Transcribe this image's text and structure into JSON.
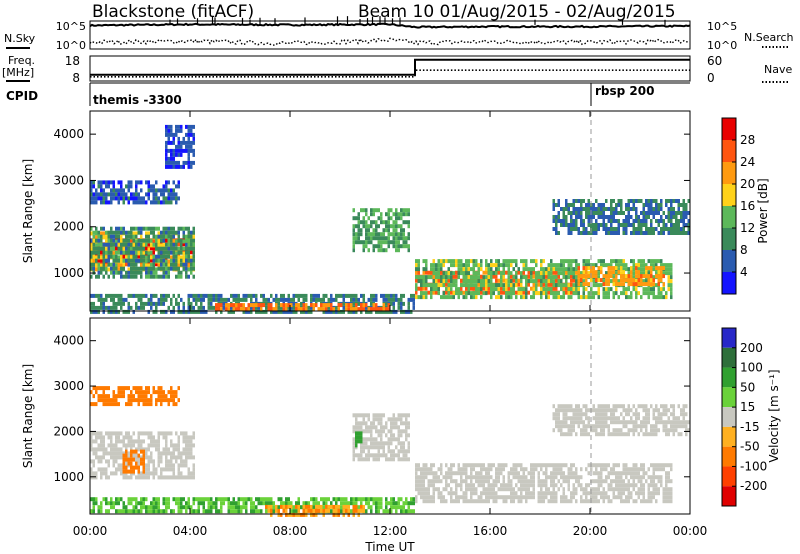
{
  "header": {
    "title": "Blackstone (fitACF)",
    "beam_dates": "Beam 10 01/Aug/2015 - 02/Aug/2015"
  },
  "left_labels": {
    "nsky": "N.Sky",
    "freq": "Freq.",
    "freq_unit": "[MHz]",
    "cpid": "CPID"
  },
  "right_labels": {
    "nsearch": "N.Search",
    "nave": "Nave"
  },
  "strip_ticks": {
    "noise_top_left": "10^5",
    "noise_bottom_left": "10^0",
    "noise_top_right": "10^5",
    "noise_bottom_right": "10^0",
    "freq_top": "18",
    "freq_bottom": "8",
    "nave_top": "60",
    "nave_bottom": "0"
  },
  "cpid_labels": {
    "first": "themis -3300",
    "second": "rbsp 200"
  },
  "x_axis": {
    "label": "Time UT",
    "ticks": [
      "00:00",
      "04:00",
      "08:00",
      "12:00",
      "16:00",
      "20:00",
      "00:00"
    ]
  },
  "y_axis": {
    "label": "Slant Range [km]",
    "ticks": [
      "1000",
      "2000",
      "3000",
      "4000"
    ]
  },
  "power_colorbar": {
    "label": "Power [dB]",
    "ticks": [
      "4",
      "8",
      "12",
      "16",
      "20",
      "24",
      "28"
    ]
  },
  "velocity_colorbar": {
    "label": "Velocity [m s⁻¹]",
    "ticks": [
      "200",
      "100",
      "50",
      "15",
      "-15",
      "-50",
      "-100",
      "-200"
    ]
  },
  "colors": {
    "power_scale": [
      "#1414ff",
      "#2a5bb0",
      "#3a8a5a",
      "#5cb85a",
      "#ffd21a",
      "#ff9a10",
      "#ff5510",
      "#e80000"
    ],
    "velocity_scale": [
      "#2828c8",
      "#2e6f3a",
      "#30a030",
      "#6ad23a",
      "#c8c8c0",
      "#ffb020",
      "#ff7a00",
      "#ff4000",
      "#e00000"
    ],
    "ground_scatter": "#c0c0b8"
  },
  "chart_data": [
    {
      "type": "line",
      "panel": "noise",
      "series": [
        {
          "name": "N.Sky",
          "style": "solid",
          "x_hours": [
            0,
            4,
            8,
            12,
            13,
            16,
            20,
            24
          ],
          "log_values": [
            4.2,
            4.4,
            4.3,
            4.4,
            3.9,
            4.0,
            4.0,
            4.1
          ]
        },
        {
          "name": "N.Search",
          "style": "dotted",
          "x_hours": [
            0,
            4,
            8,
            12,
            13,
            16,
            20,
            24
          ],
          "log_values": [
            1.2,
            1.4,
            1.0,
            1.6,
            1.1,
            1.3,
            1.2,
            1.4
          ]
        }
      ],
      "ylim_log": [
        0,
        5
      ],
      "xlim_hours": [
        0,
        24
      ]
    },
    {
      "type": "line",
      "panel": "frequency_nave",
      "series": [
        {
          "name": "Freq.",
          "style": "solid",
          "x_hours": [
            0,
            13,
            13,
            24
          ],
          "values": [
            10.5,
            10.5,
            16.5,
            16.5
          ]
        },
        {
          "name": "Nave",
          "style": "dotted",
          "x_hours": [
            0,
            13,
            13,
            24
          ],
          "values": [
            10,
            10,
            26,
            26
          ]
        }
      ],
      "ylim_freq": [
        8,
        18
      ],
      "ylim_nave": [
        0,
        60
      ],
      "xlim_hours": [
        0,
        24
      ]
    },
    {
      "type": "heatmap",
      "panel": "power",
      "quantity": "Power",
      "unit": "dB",
      "xlim_hours": [
        0,
        24
      ],
      "ylim_km": [
        180,
        4500
      ],
      "clim": [
        0,
        32
      ],
      "regions": [
        {
          "t0": 0.0,
          "t1": 4.2,
          "r0": 1150,
          "r1": 1750,
          "value": 28
        },
        {
          "t0": 0.0,
          "t1": 4.2,
          "r0": 1050,
          "r1": 1900,
          "value": 18
        },
        {
          "t0": 0.0,
          "t1": 4.2,
          "r0": 950,
          "r1": 2000,
          "value": 10
        },
        {
          "t0": 0.0,
          "t1": 3.6,
          "r0": 2500,
          "r1": 3000,
          "value": 6
        },
        {
          "t0": 3.0,
          "t1": 4.2,
          "r0": 3300,
          "r1": 4200,
          "value": 5
        },
        {
          "t0": 10.5,
          "t1": 12.8,
          "r0": 1500,
          "r1": 2400,
          "value": 12
        },
        {
          "t0": 13.0,
          "t1": 19.5,
          "r0": 550,
          "r1": 1050,
          "value": 25
        },
        {
          "t0": 13.0,
          "t1": 23.3,
          "r0": 450,
          "r1": 1300,
          "value": 14
        },
        {
          "t0": 19.5,
          "t1": 23.0,
          "r0": 750,
          "r1": 1150,
          "value": 22
        },
        {
          "t0": 18.5,
          "t1": 24.0,
          "r0": 1900,
          "r1": 2600,
          "value": 8
        },
        {
          "t0": 0.0,
          "t1": 13.0,
          "r0": 200,
          "r1": 550,
          "value": 9
        },
        {
          "t0": 5.0,
          "t1": 12.0,
          "r0": 200,
          "r1": 350,
          "value": 24
        }
      ]
    },
    {
      "type": "heatmap",
      "panel": "velocity",
      "quantity": "Velocity",
      "unit": "m s-1",
      "xlim_hours": [
        0,
        24
      ],
      "ylim_km": [
        180,
        4500
      ],
      "clim": [
        -250,
        250
      ],
      "regions": [
        {
          "t0": 0.0,
          "t1": 4.2,
          "r0": 950,
          "r1": 2000,
          "value": 0
        },
        {
          "t0": 1.3,
          "t1": 2.2,
          "r0": 1100,
          "r1": 1600,
          "value": -40
        },
        {
          "t0": 0.0,
          "t1": 3.6,
          "r0": 2600,
          "r1": 3000,
          "value": -60
        },
        {
          "t0": 10.5,
          "t1": 12.8,
          "r0": 1400,
          "r1": 2400,
          "value": 0
        },
        {
          "t0": 10.6,
          "t1": 10.9,
          "r0": 1700,
          "r1": 2000,
          "value": 40
        },
        {
          "t0": 13.0,
          "t1": 23.3,
          "r0": 450,
          "r1": 1300,
          "value": 0
        },
        {
          "t0": 18.5,
          "t1": 24.0,
          "r0": 1900,
          "r1": 2600,
          "value": 0
        },
        {
          "t0": 0.0,
          "t1": 13.0,
          "r0": 200,
          "r1": 550,
          "value": 30
        },
        {
          "t0": 7.0,
          "t1": 11.0,
          "r0": 200,
          "r1": 380,
          "value": -30
        }
      ]
    }
  ]
}
